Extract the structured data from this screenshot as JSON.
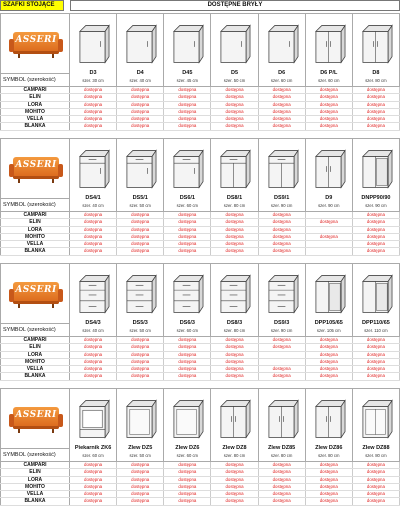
{
  "header": {
    "left": "SZAFKI STOJĄCE",
    "right": "DOSTĘPNE BRYŁY"
  },
  "brand": "ASSERI",
  "symbol_label": "SYMBOL (szerokość)",
  "colors": {
    "available": "#e0201f",
    "header_bg": "#ffff00",
    "logo": "#e8792a"
  },
  "row_labels": [
    "CAMPARI",
    "ELIN",
    "LORA",
    "MOHITO",
    "VELLA",
    "BLANKA"
  ],
  "sections": [
    {
      "products": [
        {
          "name": "D3",
          "size": "szer. 30 cm",
          "icon": "cabinet-one-door-icon"
        },
        {
          "name": "D4",
          "size": "szer. 40 cm",
          "icon": "cabinet-one-door-icon"
        },
        {
          "name": "D45",
          "size": "szer. 45 cm",
          "icon": "cabinet-one-door-icon"
        },
        {
          "name": "D5",
          "size": "szer. 50 cm",
          "icon": "cabinet-one-door-icon"
        },
        {
          "name": "D6",
          "size": "szer. 60 cm",
          "icon": "cabinet-one-door-icon"
        },
        {
          "name": "D6 P/L",
          "size": "szer. 60 cm",
          "icon": "cabinet-two-door-icon"
        },
        {
          "name": "D8",
          "size": "szer. 80 cm",
          "icon": "cabinet-two-door-icon"
        }
      ],
      "rows": [
        [
          "dostępna",
          "dostępna",
          "dostępna",
          "dostępna",
          "dostępna",
          "dostępna",
          "dostępna"
        ],
        [
          "dostępna",
          "dostępna",
          "dostępna",
          "dostępna",
          "dostępna",
          "dostępna",
          "dostępna"
        ],
        [
          "dostępna",
          "dostępna",
          "dostępna",
          "dostępna",
          "dostępna",
          "dostępna",
          "dostępna"
        ],
        [
          "dostępna",
          "dostępna",
          "dostępna",
          "dostępna",
          "dostępna",
          "dostępna",
          "dostępna"
        ],
        [
          "dostępna",
          "dostępna",
          "dostępna",
          "dostępna",
          "dostępna",
          "dostępna",
          "dostępna"
        ],
        [
          "dostępna",
          "dostępna",
          "dostępna",
          "dostępna",
          "dostępna",
          "dostępna",
          "dostępna"
        ]
      ]
    },
    {
      "products": [
        {
          "name": "DS4/1",
          "size": "szer. 40 cm",
          "icon": "cabinet-drawer-door-icon"
        },
        {
          "name": "DS5/1",
          "size": "szer. 50 cm",
          "icon": "cabinet-drawer-door-icon"
        },
        {
          "name": "DS6/1",
          "size": "szer. 60 cm",
          "icon": "cabinet-drawer-door-icon"
        },
        {
          "name": "DS8/1",
          "size": "szer. 80 cm",
          "icon": "cabinet-drawer-two-door-icon"
        },
        {
          "name": "DS9/1",
          "size": "szer. 90 cm",
          "icon": "cabinet-drawer-two-door-icon"
        },
        {
          "name": "D9",
          "size": "szer. 90 cm",
          "icon": "cabinet-two-door-icon"
        },
        {
          "name": "DNPP90/90",
          "size": "szer. 90 cm",
          "icon": "corner-cabinet-icon"
        }
      ],
      "rows": [
        [
          "dostępna",
          "dostępna",
          "dostępna",
          "dostępna",
          "dostępna",
          "",
          "dostępna"
        ],
        [
          "dostępna",
          "dostępna",
          "dostępna",
          "dostępna",
          "dostępna",
          "dostępna",
          "dostępna"
        ],
        [
          "dostępna",
          "dostępna",
          "dostępna",
          "dostępna",
          "dostępna",
          "",
          "dostępna"
        ],
        [
          "dostępna",
          "dostępna",
          "dostępna",
          "dostępna",
          "dostępna",
          "dostępna",
          "dostępna"
        ],
        [
          "dostępna",
          "dostępna",
          "dostępna",
          "dostępna",
          "dostępna",
          "",
          "dostępna"
        ],
        [
          "dostępna",
          "dostępna",
          "dostępna",
          "dostępna",
          "dostępna",
          "",
          "dostępna"
        ]
      ]
    },
    {
      "products": [
        {
          "name": "DS4/3",
          "size": "szer. 40 cm",
          "icon": "cabinet-drawers-icon"
        },
        {
          "name": "DS5/3",
          "size": "szer. 50 cm",
          "icon": "cabinet-drawers-icon"
        },
        {
          "name": "DS6/3",
          "size": "szer. 60 cm",
          "icon": "cabinet-drawers-icon"
        },
        {
          "name": "DS8/3",
          "size": "szer. 80 cm",
          "icon": "cabinet-drawers-icon"
        },
        {
          "name": "DS9/3",
          "size": "szer. 90 cm",
          "icon": "cabinet-drawers-icon"
        },
        {
          "name": "DPP105/65",
          "size": "szer. 105 cm",
          "icon": "corner-cabinet-icon"
        },
        {
          "name": "DPP110/65",
          "size": "szer. 110 cm",
          "icon": "corner-cabinet-icon"
        }
      ],
      "rows": [
        [
          "dostępna",
          "dostępna",
          "dostępna",
          "dostępna",
          "dostępna",
          "dostępna",
          "dostępna"
        ],
        [
          "dostępna",
          "dostępna",
          "dostępna",
          "dostępna",
          "dostępna",
          "dostępna",
          "dostępna"
        ],
        [
          "dostępna",
          "dostępna",
          "dostępna",
          "dostępna",
          "",
          "dostępna",
          "dostępna"
        ],
        [
          "dostępna",
          "dostępna",
          "dostępna",
          "dostępna",
          "",
          "dostępna",
          "dostępna"
        ],
        [
          "dostępna",
          "dostępna",
          "dostępna",
          "dostępna",
          "dostępna",
          "dostępna",
          "dostępna"
        ],
        [
          "dostępna",
          "dostępna",
          "dostępna",
          "dostępna",
          "dostępna",
          "dostępna",
          "dostępna"
        ]
      ]
    },
    {
      "products": [
        {
          "name": "Piekarnik ZK6",
          "size": "szer. 60 cm",
          "icon": "oven-cabinet-icon"
        },
        {
          "name": "Zlew DZ5",
          "size": "szer. 50 cm",
          "icon": "sink-cabinet-icon"
        },
        {
          "name": "Zlew DZ6",
          "size": "szer. 60 cm",
          "icon": "sink-cabinet-icon"
        },
        {
          "name": "Zlew DZ8",
          "size": "szer. 80 cm",
          "icon": "sink-cabinet-two-door-icon"
        },
        {
          "name": "Zlew DZ85",
          "size": "szer. 80 cm",
          "icon": "sink-cabinet-two-door-icon"
        },
        {
          "name": "Zlew DZ86",
          "size": "szer. 80 cm",
          "icon": "sink-cabinet-two-door-icon"
        },
        {
          "name": "Zlew DZ88",
          "size": "szer. 80 cm",
          "icon": "sink-cabinet-drawer-icon"
        }
      ],
      "rows": [
        [
          "dostępna",
          "dostępna",
          "dostępna",
          "dostępna",
          "dostępna",
          "dostępna",
          "dostępna"
        ],
        [
          "dostępna",
          "dostępna",
          "dostępna",
          "dostępna",
          "dostępna",
          "dostępna",
          "dostępna"
        ],
        [
          "dostępna",
          "dostępna",
          "dostępna",
          "dostępna",
          "dostępna",
          "dostępna",
          "dostępna"
        ],
        [
          "dostępna",
          "dostępna",
          "dostępna",
          "dostępna",
          "dostępna",
          "dostępna",
          "dostępna"
        ],
        [
          "dostępna",
          "dostępna",
          "dostępna",
          "dostępna",
          "dostępna",
          "dostępna",
          "dostępna"
        ],
        [
          "dostępna",
          "dostępna",
          "dostępna",
          "dostępna",
          "dostępna",
          "dostępna",
          "dostępna"
        ]
      ]
    }
  ]
}
